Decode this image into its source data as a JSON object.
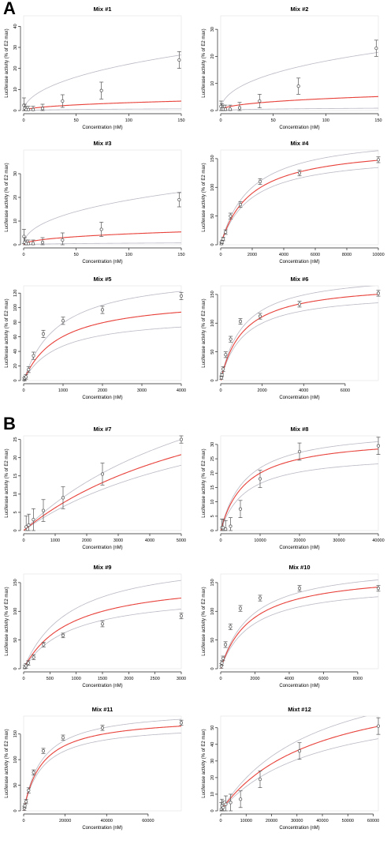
{
  "figure": {
    "panel_letters": [
      "A",
      "B"
    ],
    "colors": {
      "fit": "#e8413a",
      "ci": "#b9b9c4",
      "points": "#555555",
      "axis": "#222222"
    }
  },
  "chart_data": [
    {
      "type": "scatter",
      "panel": "A",
      "title": "Mix #1",
      "xlabel": "Concentration (nM)",
      "ylabel": "Luciferase activity (% of E2 max)",
      "xlim": [
        0,
        150
      ],
      "ylim": [
        0,
        45
      ],
      "xticks": [
        0,
        50,
        100,
        150
      ],
      "yticks": [
        0,
        10,
        20,
        30,
        40
      ],
      "points": [
        {
          "x": 0.3,
          "y": 2.5,
          "err": 3.5
        },
        {
          "x": 1,
          "y": 1,
          "err": 2
        },
        {
          "x": 2.5,
          "y": 0.5,
          "err": 1.5
        },
        {
          "x": 4.5,
          "y": 0.5,
          "err": 1.5
        },
        {
          "x": 9,
          "y": 0.5,
          "err": 1.5
        },
        {
          "x": 18,
          "y": 1,
          "err": 2
        },
        {
          "x": 37,
          "y": 4.5,
          "err": 3
        },
        {
          "x": 74,
          "y": 9.5,
          "err": 4
        },
        {
          "x": 148,
          "y": 24,
          "err": 4
        }
      ],
      "fit": {
        "a": 22,
        "k": 1800,
        "h": 0.55
      },
      "ci_upper": {
        "a": 130,
        "k": 1800,
        "h": 0.55
      },
      "ci_lower": {
        "a": 4,
        "k": 1800,
        "h": 0.55
      }
    },
    {
      "type": "scatter",
      "panel": "A",
      "title": "Mix #2",
      "xlabel": "Concentration (nM)",
      "ylabel": "Luciferase activity (% of E2 max)",
      "xlim": [
        0,
        150
      ],
      "ylim": [
        0,
        35
      ],
      "xticks": [
        0,
        50,
        100,
        150
      ],
      "yticks": [
        0,
        10,
        20,
        30
      ],
      "points": [
        {
          "x": 0.3,
          "y": 1.5,
          "err": 2
        },
        {
          "x": 1,
          "y": 0.5,
          "err": 2
        },
        {
          "x": 2.5,
          "y": 0.5,
          "err": 1.5
        },
        {
          "x": 4.5,
          "y": 0.5,
          "err": 1.5
        },
        {
          "x": 9,
          "y": 0.5,
          "err": 1.5
        },
        {
          "x": 18,
          "y": 1,
          "err": 2
        },
        {
          "x": 37,
          "y": 3.5,
          "err": 2.5
        },
        {
          "x": 74,
          "y": 9,
          "err": 3
        },
        {
          "x": 148,
          "y": 23,
          "err": 3
        }
      ],
      "fit": {
        "a": 24,
        "k": 2000,
        "h": 0.5
      },
      "ci_upper": {
        "a": 100,
        "k": 2000,
        "h": 0.5
      },
      "ci_lower": {
        "a": 4,
        "k": 2000,
        "h": 0.5
      }
    },
    {
      "type": "scatter",
      "panel": "A",
      "title": "Mix #3",
      "xlabel": "Concentration (nM)",
      "ylabel": "Luciferase activity (% of E2 max)",
      "xlim": [
        0,
        150
      ],
      "ylim": [
        0,
        40
      ],
      "xticks": [
        0,
        50,
        100,
        150
      ],
      "yticks": [
        0,
        10,
        20,
        30
      ],
      "points": [
        {
          "x": 0.3,
          "y": 3.5,
          "err": 3
        },
        {
          "x": 1,
          "y": 1,
          "err": 2
        },
        {
          "x": 2.5,
          "y": 0.5,
          "err": 1.5
        },
        {
          "x": 4.5,
          "y": 0.5,
          "err": 1.5
        },
        {
          "x": 9,
          "y": 0.5,
          "err": 1.5
        },
        {
          "x": 18,
          "y": 1,
          "err": 2
        },
        {
          "x": 37,
          "y": 2,
          "err": 3
        },
        {
          "x": 74,
          "y": 6.5,
          "err": 3
        },
        {
          "x": 148,
          "y": 19,
          "err": 3
        }
      ],
      "fit": {
        "a": 28,
        "k": 2600,
        "h": 0.5
      },
      "ci_upper": {
        "a": 115,
        "k": 2600,
        "h": 0.5
      },
      "ci_lower": {
        "a": 4,
        "k": 2600,
        "h": 0.5
      }
    },
    {
      "type": "scatter",
      "panel": "A",
      "title": "Mix #4",
      "xlabel": "Concentration (nM)",
      "ylabel": "Luciferase activity (% of E2 max)",
      "xlim": [
        0,
        10000
      ],
      "ylim": [
        0,
        165
      ],
      "xticks": [
        0,
        2000,
        4000,
        6000,
        8000,
        10000
      ],
      "yticks": [
        0,
        50,
        100,
        150
      ],
      "points": [
        {
          "x": 40,
          "y": 2,
          "err": 3
        },
        {
          "x": 80,
          "y": 5,
          "err": 3
        },
        {
          "x": 160,
          "y": 10,
          "err": 3
        },
        {
          "x": 310,
          "y": 22,
          "err": 4
        },
        {
          "x": 620,
          "y": 50,
          "err": 5
        },
        {
          "x": 1250,
          "y": 70,
          "err": 5
        },
        {
          "x": 2500,
          "y": 110,
          "err": 5
        },
        {
          "x": 5000,
          "y": 125,
          "err": 5
        },
        {
          "x": 10000,
          "y": 148,
          "err": 5
        }
      ],
      "fit": {
        "a": 175,
        "k": 1900,
        "h": 1
      },
      "ci_upper": {
        "a": 195,
        "k": 1900,
        "h": 1
      },
      "ci_lower": {
        "a": 160,
        "k": 1900,
        "h": 1
      }
    },
    {
      "type": "scatter",
      "panel": "A",
      "title": "Mix #5",
      "xlabel": "Concentration (nM)",
      "ylabel": "Luciferase activity (% of E2 max)",
      "xlim": [
        0,
        4000
      ],
      "ylim": [
        0,
        130
      ],
      "xticks": [
        0,
        1000,
        2000,
        3000,
        4000
      ],
      "yticks": [
        0,
        20,
        40,
        60,
        80,
        100,
        120
      ],
      "points": [
        {
          "x": 15,
          "y": 1,
          "err": 3
        },
        {
          "x": 30,
          "y": 3,
          "err": 3
        },
        {
          "x": 60,
          "y": 5,
          "err": 3
        },
        {
          "x": 125,
          "y": 15,
          "err": 4
        },
        {
          "x": 250,
          "y": 34,
          "err": 5
        },
        {
          "x": 500,
          "y": 64,
          "err": 5
        },
        {
          "x": 1000,
          "y": 82,
          "err": 5
        },
        {
          "x": 2000,
          "y": 97,
          "err": 5
        },
        {
          "x": 4000,
          "y": 116,
          "err": 5
        }
      ],
      "fit": {
        "a": 115,
        "k": 900,
        "h": 1
      },
      "ci_upper": {
        "a": 150,
        "k": 900,
        "h": 1
      },
      "ci_lower": {
        "a": 90,
        "k": 900,
        "h": 1
      }
    },
    {
      "type": "scatter",
      "panel": "A",
      "title": "Mix #6",
      "xlabel": "Concentration (nM)",
      "ylabel": "Luciferase activity (% of E2 max)",
      "xlim": [
        0,
        7600
      ],
      "ylim": [
        0,
        165
      ],
      "xticks": [
        0,
        2000,
        4000,
        6000
      ],
      "yticks": [
        0,
        50,
        100,
        150
      ],
      "points": [
        {
          "x": 30,
          "y": 5,
          "err": 3
        },
        {
          "x": 60,
          "y": 10,
          "err": 3
        },
        {
          "x": 120,
          "y": 20,
          "err": 4
        },
        {
          "x": 240,
          "y": 45,
          "err": 5
        },
        {
          "x": 480,
          "y": 72,
          "err": 5
        },
        {
          "x": 950,
          "y": 103,
          "err": 5
        },
        {
          "x": 1900,
          "y": 112,
          "err": 5
        },
        {
          "x": 3800,
          "y": 133,
          "err": 5
        },
        {
          "x": 7600,
          "y": 152,
          "err": 5
        }
      ],
      "fit": {
        "a": 172,
        "k": 1100,
        "h": 1
      },
      "ci_upper": {
        "a": 190,
        "k": 1100,
        "h": 1
      },
      "ci_lower": {
        "a": 155,
        "k": 1100,
        "h": 1
      }
    },
    {
      "type": "scatter",
      "panel": "B",
      "title": "Mix #7",
      "xlabel": "Concentration (nM)",
      "ylabel": "Luciferase activity (% of E2 max)",
      "xlim": [
        0,
        5000
      ],
      "ylim": [
        0,
        26
      ],
      "xticks": [
        0,
        1000,
        2000,
        3000,
        4000,
        5000
      ],
      "yticks": [
        0,
        5,
        10,
        15,
        20,
        25
      ],
      "points": [
        {
          "x": 80,
          "y": 1,
          "err": 3
        },
        {
          "x": 160,
          "y": 1.5,
          "err": 3
        },
        {
          "x": 310,
          "y": 3,
          "err": 3
        },
        {
          "x": 625,
          "y": 5.5,
          "err": 3
        },
        {
          "x": 1250,
          "y": 9,
          "err": 3
        },
        {
          "x": 2500,
          "y": 15.5,
          "err": 3
        },
        {
          "x": 5000,
          "y": 25,
          "err": 1
        }
      ],
      "fit": {
        "a": 50,
        "k": 7000,
        "h": 1
      },
      "ci_upper": {
        "a": 60,
        "k": 7000,
        "h": 1
      },
      "ci_lower": {
        "a": 43,
        "k": 7000,
        "h": 1
      }
    },
    {
      "type": "scatter",
      "panel": "B",
      "title": "Mix #8",
      "xlabel": "Concentration (nM)",
      "ylabel": "Luciferase activity (% of E2 max)",
      "xlim": [
        0,
        40000
      ],
      "ylim": [
        0,
        33
      ],
      "xticks": [
        0,
        10000,
        20000,
        30000,
        40000
      ],
      "yticks": [
        0,
        5,
        10,
        15,
        20,
        25,
        30
      ],
      "points": [
        {
          "x": 300,
          "y": 1,
          "err": 3
        },
        {
          "x": 600,
          "y": 1,
          "err": 3
        },
        {
          "x": 1250,
          "y": 0.5,
          "err": 3
        },
        {
          "x": 2500,
          "y": 1.5,
          "err": 3
        },
        {
          "x": 5000,
          "y": 7.5,
          "err": 3
        },
        {
          "x": 10000,
          "y": 18,
          "err": 3
        },
        {
          "x": 20000,
          "y": 27.5,
          "err": 3
        },
        {
          "x": 40000,
          "y": 29.5,
          "err": 3
        }
      ],
      "fit": {
        "a": 33,
        "k": 6500,
        "h": 1
      },
      "ci_upper": {
        "a": 36,
        "k": 6500,
        "h": 1
      },
      "ci_lower": {
        "a": 27,
        "k": 6500,
        "h": 1
      }
    },
    {
      "type": "scatter",
      "panel": "B",
      "title": "Mix #9",
      "xlabel": "Concentration (nM)",
      "ylabel": "Luciferase activity (% of E2 max)",
      "xlim": [
        0,
        3000
      ],
      "ylim": [
        0,
        165
      ],
      "xticks": [
        0,
        500,
        1000,
        1500,
        2000,
        2500,
        3000
      ],
      "yticks": [
        0,
        50,
        100,
        150
      ],
      "points": [
        {
          "x": 20,
          "y": 2,
          "err": 4
        },
        {
          "x": 45,
          "y": 5,
          "err": 4
        },
        {
          "x": 90,
          "y": 10,
          "err": 4
        },
        {
          "x": 190,
          "y": 20,
          "err": 4
        },
        {
          "x": 380,
          "y": 42,
          "err": 4
        },
        {
          "x": 750,
          "y": 58,
          "err": 4
        },
        {
          "x": 1500,
          "y": 78,
          "err": 5
        },
        {
          "x": 3000,
          "y": 92,
          "err": 5
        }
      ],
      "fit": {
        "a": 160,
        "k": 900,
        "h": 1
      },
      "ci_upper": {
        "a": 200,
        "k": 900,
        "h": 1
      },
      "ci_lower": {
        "a": 135,
        "k": 900,
        "h": 1
      }
    },
    {
      "type": "scatter",
      "panel": "B",
      "title": "Mix #10",
      "xlabel": "Concentration (nM)",
      "ylabel": "Luciferase activity (% of E2 max)",
      "xlim": [
        0,
        9200
      ],
      "ylim": [
        0,
        165
      ],
      "xticks": [
        0,
        2000,
        4000,
        6000,
        8000
      ],
      "yticks": [
        0,
        50,
        100,
        150
      ],
      "points": [
        {
          "x": 35,
          "y": 5,
          "err": 4
        },
        {
          "x": 70,
          "y": 10,
          "err": 4
        },
        {
          "x": 140,
          "y": 18,
          "err": 4
        },
        {
          "x": 280,
          "y": 42,
          "err": 5
        },
        {
          "x": 570,
          "y": 73,
          "err": 5
        },
        {
          "x": 1150,
          "y": 105,
          "err": 5
        },
        {
          "x": 2300,
          "y": 123,
          "err": 5
        },
        {
          "x": 4600,
          "y": 140,
          "err": 5
        },
        {
          "x": 9200,
          "y": 140,
          "err": 5
        }
      ],
      "fit": {
        "a": 170,
        "k": 1800,
        "h": 1
      },
      "ci_upper": {
        "a": 185,
        "k": 1800,
        "h": 1
      },
      "ci_lower": {
        "a": 150,
        "k": 1800,
        "h": 1
      }
    },
    {
      "type": "scatter",
      "panel": "B",
      "title": "Mix #11",
      "xlabel": "Concentration (nM)",
      "ylabel": "Luciferase activity (% of E2 max)",
      "xlim": [
        0,
        76000
      ],
      "ylim": [
        0,
        185
      ],
      "xticks": [
        0,
        20000,
        40000,
        60000
      ],
      "yticks": [
        0,
        50,
        100,
        150
      ],
      "points": [
        {
          "x": 300,
          "y": 5,
          "err": 4
        },
        {
          "x": 600,
          "y": 10,
          "err": 4
        },
        {
          "x": 1200,
          "y": 18,
          "err": 4
        },
        {
          "x": 2400,
          "y": 40,
          "err": 5
        },
        {
          "x": 4800,
          "y": 75,
          "err": 5
        },
        {
          "x": 9500,
          "y": 117,
          "err": 5
        },
        {
          "x": 19000,
          "y": 143,
          "err": 5
        },
        {
          "x": 38000,
          "y": 162,
          "err": 5
        },
        {
          "x": 76000,
          "y": 172,
          "err": 5
        }
      ],
      "fit": {
        "a": 185,
        "k": 9000,
        "h": 1
      },
      "ci_upper": {
        "a": 200,
        "k": 9000,
        "h": 1
      },
      "ci_lower": {
        "a": 170,
        "k": 9000,
        "h": 1
      }
    },
    {
      "type": "scatter",
      "panel": "B",
      "title": "Mixt #12",
      "xlabel": "Concentration (nM)",
      "ylabel": "Luciferase activity (% of E2 max)",
      "xlim": [
        0,
        62000
      ],
      "ylim": [
        0,
        57
      ],
      "xticks": [
        0,
        10000,
        20000,
        30000,
        40000,
        50000,
        60000
      ],
      "yticks": [
        0,
        10,
        20,
        30,
        40,
        50
      ],
      "points": [
        {
          "x": 250,
          "y": 1,
          "err": 4
        },
        {
          "x": 500,
          "y": 3,
          "err": 4
        },
        {
          "x": 1000,
          "y": 2,
          "err": 4
        },
        {
          "x": 2000,
          "y": 4,
          "err": 5
        },
        {
          "x": 3900,
          "y": 5,
          "err": 5
        },
        {
          "x": 7800,
          "y": 7,
          "err": 5
        },
        {
          "x": 15500,
          "y": 19,
          "err": 5
        },
        {
          "x": 31000,
          "y": 36,
          "err": 5
        },
        {
          "x": 62000,
          "y": 51,
          "err": 5
        }
      ],
      "fit": {
        "a": 82,
        "k": 38000,
        "h": 1
      },
      "ci_upper": {
        "a": 95,
        "k": 38000,
        "h": 1
      },
      "ci_lower": {
        "a": 70,
        "k": 38000,
        "h": 1
      }
    }
  ]
}
